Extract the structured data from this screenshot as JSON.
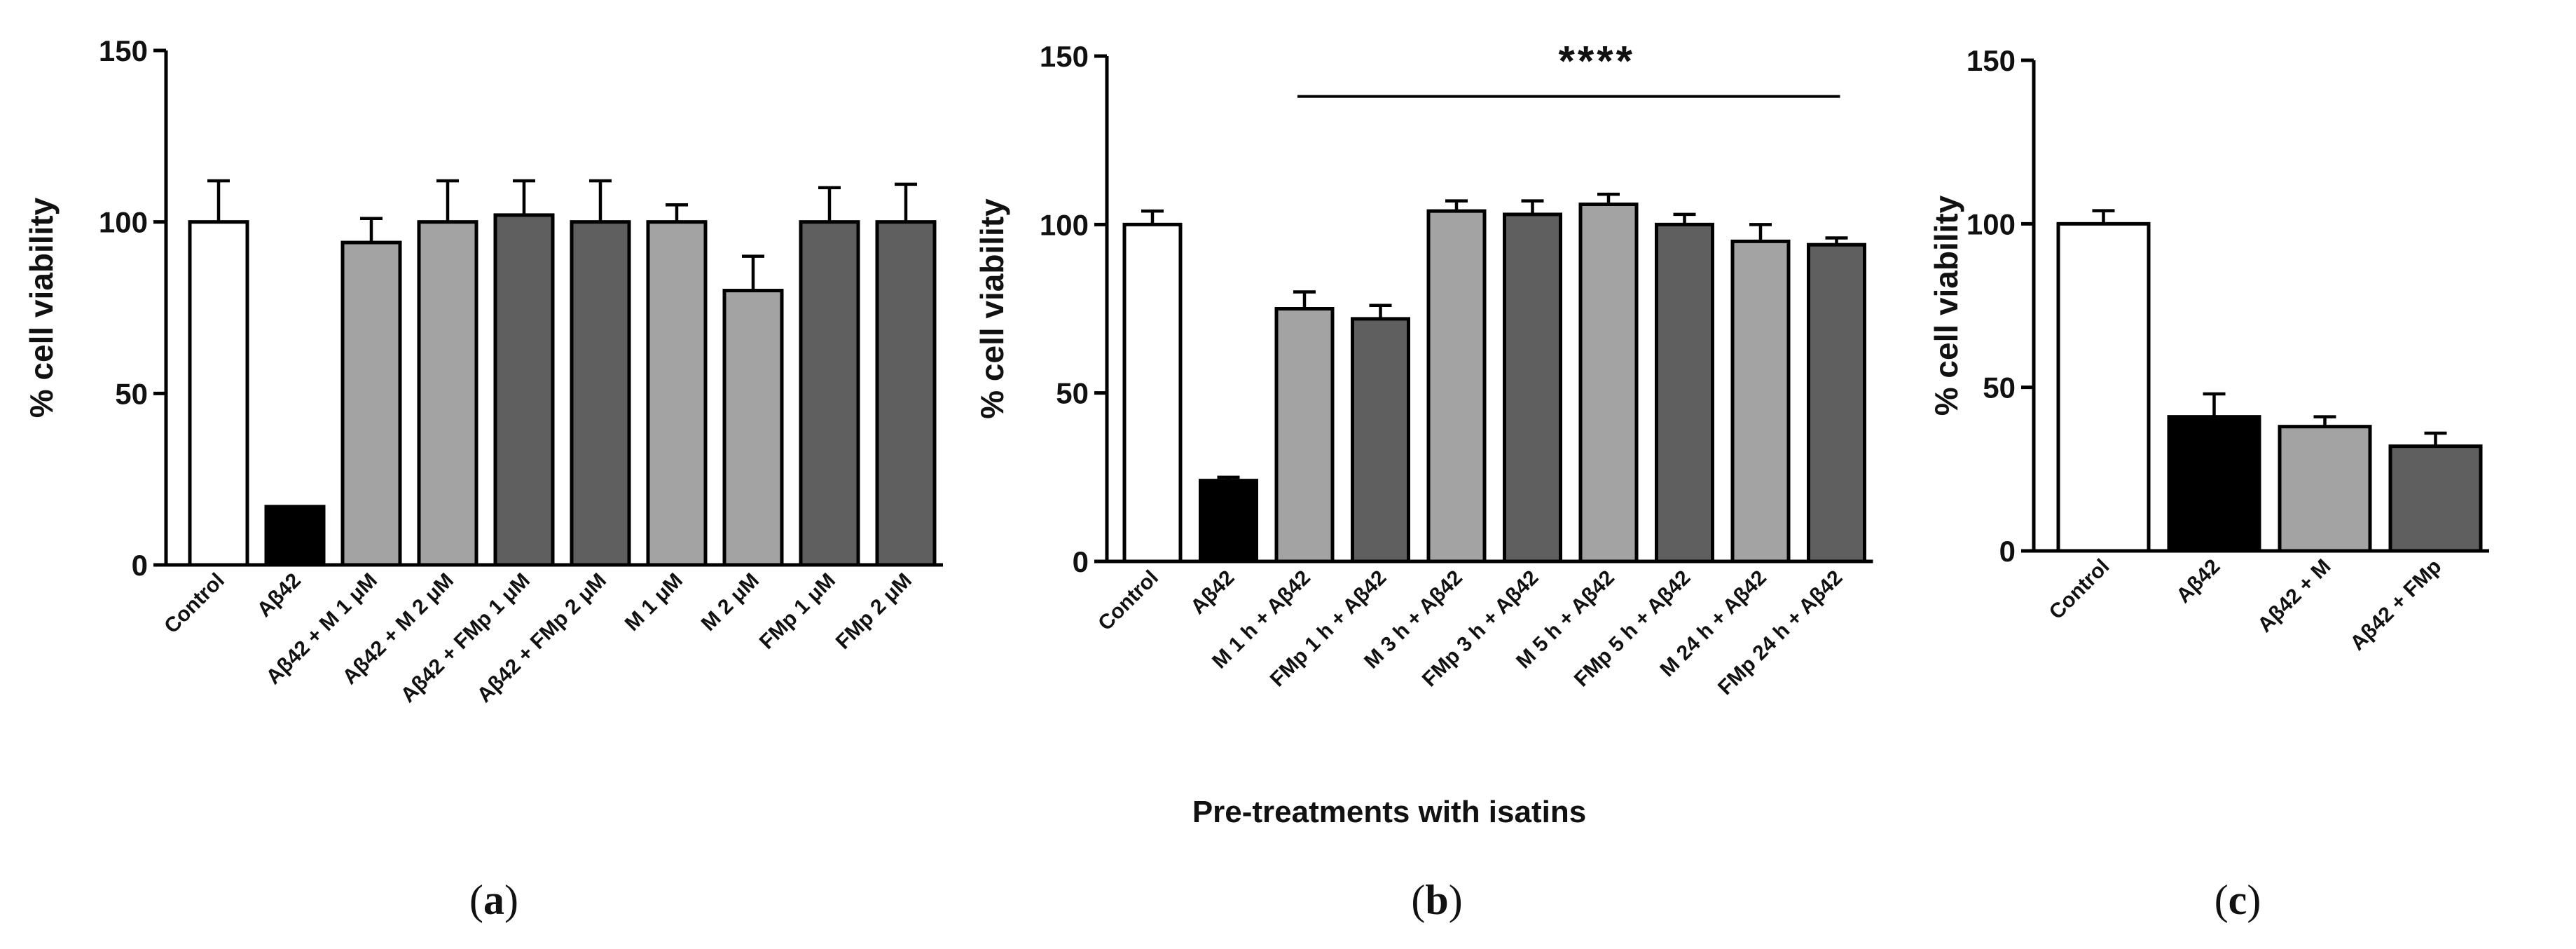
{
  "colors": {
    "control": "#ffffff",
    "abeta": "#000000",
    "m_treatment": "#a3a3a3",
    "fmp_treatment": "#5f5f5f",
    "stroke": "#000000"
  },
  "chart_data": [
    {
      "type": "bar",
      "panel_label": "a",
      "ylabel": "% cell viability",
      "xlabel": "",
      "ylim": [
        0,
        150
      ],
      "yticks": [
        0,
        50,
        100,
        150
      ],
      "categories": [
        "Control",
        "Aβ42",
        "Aβ42 + M 1 μM",
        "Aβ42 + M 2 μM",
        "Aβ42 + FMp 1 μM",
        "Aβ42 + FMp 2 μM",
        "M 1 μM",
        "M 2 μM",
        "FMp 1 μM",
        "FMp 2 μM"
      ],
      "values": [
        100,
        17,
        94,
        100,
        102,
        100,
        100,
        80,
        100,
        100
      ],
      "errors": [
        12,
        0,
        7,
        12,
        10,
        12,
        5,
        10,
        10,
        11
      ],
      "bar_color_keys": [
        "control",
        "abeta",
        "m_treatment",
        "m_treatment",
        "fmp_treatment",
        "fmp_treatment",
        "m_treatment",
        "m_treatment",
        "fmp_treatment",
        "fmp_treatment"
      ]
    },
    {
      "type": "bar",
      "panel_label": "b",
      "ylabel": "% cell viability",
      "xlabel": "Pre-treatments with isatins",
      "ylim": [
        0,
        150
      ],
      "yticks": [
        0,
        50,
        100,
        150
      ],
      "categories": [
        "Control",
        "Aβ42",
        "M 1 h + Aβ42",
        "FMp 1 h + Aβ42",
        "M 3 h + Aβ42",
        "FMp 3 h + Aβ42",
        "M 5 h + Aβ42",
        "FMp 5 h + Aβ42",
        "M 24 h + Aβ42",
        "FMp 24 h + Aβ42"
      ],
      "values": [
        100,
        24,
        75,
        72,
        104,
        103,
        106,
        100,
        95,
        94
      ],
      "errors": [
        4,
        1,
        5,
        4,
        3,
        4,
        3,
        3,
        5,
        2
      ],
      "bar_color_keys": [
        "control",
        "abeta",
        "m_treatment",
        "fmp_treatment",
        "m_treatment",
        "fmp_treatment",
        "m_treatment",
        "fmp_treatment",
        "m_treatment",
        "fmp_treatment"
      ],
      "significance": {
        "label": "****",
        "from_index": 2,
        "to_index": 9,
        "at_value": 138
      }
    },
    {
      "type": "bar",
      "panel_label": "c",
      "ylabel": "% cell viability",
      "xlabel": "",
      "ylim": [
        0,
        150
      ],
      "yticks": [
        0,
        50,
        100,
        150
      ],
      "categories": [
        "Control",
        "Aβ42",
        "Aβ42 + M",
        "Aβ42 + FMp"
      ],
      "values": [
        100,
        41,
        38,
        32
      ],
      "errors": [
        4,
        7,
        3,
        4
      ],
      "bar_color_keys": [
        "control",
        "abeta",
        "m_treatment",
        "fmp_treatment"
      ]
    }
  ]
}
